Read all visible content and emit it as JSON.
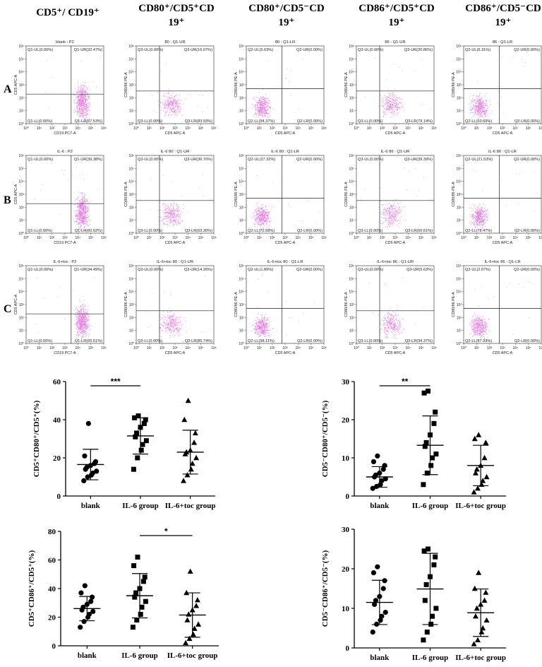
{
  "column_headers": [
    {
      "line1": "CD5⁺/ CD19⁺",
      "line2": ""
    },
    {
      "line1": "CD80⁺/CD5⁺CD",
      "line2": "19⁺"
    },
    {
      "line1": "CD80⁺/CD5⁻CD",
      "line2": "19⁺"
    },
    {
      "line1": "CD86⁺/CD5⁺CD",
      "line2": "19⁺"
    },
    {
      "line1": "CD86⁺/CD5⁻CD",
      "line2": "19⁺"
    }
  ],
  "row_labels": [
    "A",
    "B",
    "C"
  ],
  "flow_plots": [
    [
      {
        "title": "blank : P2",
        "xlabel": "CD19 PC7-A",
        "ylabel": "CD5 APC-A",
        "ul": "Q1-UL(0.00%)",
        "ur": "Q1-UR(32.47%)",
        "ll": "Q1-LL(0.00%)",
        "lr": "Q1-LR(67.53%)",
        "cloud": "lr",
        "vline": 0.58,
        "hline": 0.38
      },
      {
        "title": "80 : Q1-UR",
        "xlabel": "CD5 APC-A",
        "ylabel": "CD80/86 PE-A",
        "ul": "Q3-UL(0.00%)",
        "ur": "Q3-UR(16.07%)",
        "ll": "Q3-LL(0.00%)",
        "lr": "Q3-LR(83.93%)",
        "cloud": "center",
        "vline": 0.3,
        "hline": 0.42
      },
      {
        "title": "80 : Q1-LR",
        "xlabel": "CD5 APC-A",
        "ylabel": "CD80/86 PE-A",
        "ul": "Q2-UL(5.63%)",
        "ur": "Q2-UR(0.00%)",
        "ll": "Q2-LL(94.37%)",
        "lr": "Q2-LR(0.00%)",
        "cloud": "left",
        "vline": 0.46,
        "hline": 0.45
      },
      {
        "title": "86 : Q1-UR",
        "xlabel": "CD5 APC-A",
        "ylabel": "CD80/86 PE-A",
        "ul": "Q3-UL(0.00%)",
        "ur": "Q3-UR(20.86%)",
        "ll": "Q3-LL(0.00%)",
        "lr": "Q3-LR(79.14%)",
        "cloud": "center",
        "vline": 0.3,
        "hline": 0.42
      },
      {
        "title": "86 : Q1-LR",
        "xlabel": "CD5 APC-A",
        "ylabel": "CD80/86 PE-A",
        "ul": "Q2-UL(6.31%)",
        "ur": "Q2-UR(0.00%)",
        "ll": "Q2-LL(93.69%)",
        "lr": "Q2-LR(0.00%)",
        "cloud": "left",
        "vline": 0.46,
        "hline": 0.45
      }
    ],
    [
      {
        "title": "IL-6 : P2",
        "xlabel": "CD19 PC7-A",
        "ylabel": "CD5 APC-A",
        "ul": "Q1-UL(0.00%)",
        "ur": "Q1-UR(39.38%)",
        "ll": "Q1-LL(0.00%)",
        "lr": "Q1-LR(60.62%)",
        "cloud": "lr",
        "vline": 0.58,
        "hline": 0.38
      },
      {
        "title": "IL-6 80 : Q1-UR",
        "xlabel": "CD5 APC-A",
        "ylabel": "CD80/86 PE-A",
        "ul": "Q3-UL(0.00%)",
        "ur": "Q3-UR(36.70%)",
        "ll": "Q3-LL(0.00%)",
        "lr": "Q3-LR(63.30%)",
        "cloud": "center",
        "vline": 0.3,
        "hline": 0.42
      },
      {
        "title": "IL-6 80 : Q1-LR",
        "xlabel": "CD5 APC-A",
        "ylabel": "CD80/86 PE-A",
        "ul": "Q2-UL(27.32%)",
        "ur": "Q2-UR(0.00%)",
        "ll": "Q2-LL(72.68%)",
        "lr": "Q2-LR(0.00%)",
        "cloud": "left",
        "vline": 0.46,
        "hline": 0.45
      },
      {
        "title": "IL-6 86 : Q1-UR",
        "xlabel": "CD5 APC-A",
        "ylabel": "CD80/86 PE-A",
        "ul": "Q3-UL(0.00%)",
        "ur": "Q3-UR(39.39%)",
        "ll": "Q3-LL(0.00%)",
        "lr": "Q3-LR(60.61%)",
        "cloud": "center",
        "vline": 0.3,
        "hline": 0.42
      },
      {
        "title": "IL-6 86 : Q1-LR",
        "xlabel": "CD5 APC-A",
        "ylabel": "CD80/86 PE-A",
        "ul": "Q2-UL(21.53%)",
        "ur": "Q2-UR(0.00%)",
        "ll": "Q2-LL(78.47%)",
        "lr": "Q2-LR(0.00%)",
        "cloud": "left",
        "vline": 0.46,
        "hline": 0.45
      }
    ],
    [
      {
        "title": "IL-6+toc : P2",
        "xlabel": "CD19 PC7-A",
        "ylabel": "CD5 APC-A",
        "ul": "Q1-UL(0.00%)",
        "ur": "Q1-UR(34.49%)",
        "ll": "Q1-LL(0.00%)",
        "lr": "Q1-LR(65.51%)",
        "cloud": "lr",
        "vline": 0.58,
        "hline": 0.38
      },
      {
        "title": "IL-6+toc 80 : Q1-UR",
        "xlabel": "CD5 APC-A",
        "ylabel": "CD80/86 PE-A",
        "ul": "Q3-UL(0.00%)",
        "ur": "Q3-UR(14.26%)",
        "ll": "Q3-LL(0.00%)",
        "lr": "Q3-LR(85.74%)",
        "cloud": "center",
        "vline": 0.3,
        "hline": 0.42
      },
      {
        "title": "IL-6+toc 80 : Q1-LR",
        "xlabel": "CD5 APC-A",
        "ylabel": "CD80/86 PE-A",
        "ul": "Q2-UL(1.89%)",
        "ur": "Q2-UR(0.00%)",
        "ll": "Q2-LL(98.11%)",
        "lr": "Q2-LR(0.00%)",
        "cloud": "left",
        "vline": 0.46,
        "hline": 0.45
      },
      {
        "title": "IL-6+toc 86 : Q1-UR",
        "xlabel": "CD5 APC-A",
        "ylabel": "CD80/86 PE-A",
        "ul": "Q3-UL(0.00%)",
        "ur": "Q3-UR(5.63%)",
        "ll": "Q3-LL(0.00%)",
        "lr": "Q3-LR(94.37%)",
        "cloud": "center",
        "vline": 0.3,
        "hline": 0.42
      },
      {
        "title": "IL-6+toc 86 : Q1-LR",
        "xlabel": "CD5 APC-A",
        "ylabel": "CD80/86 PE-A",
        "ul": "Q2-UL(2.07%)",
        "ur": "Q2-UR(0.00%)",
        "ll": "Q2-LL(97.93%)",
        "lr": "Q2-LR(0.00%)",
        "cloud": "left",
        "vline": 0.46,
        "hline": 0.45
      }
    ]
  ],
  "flow_axis_ticks": [
    "10⁰",
    "10¹",
    "10²",
    "10³",
    "10⁴",
    "10⁵",
    "10⁶"
  ],
  "dot_color": "#e040d8",
  "chart_data": [
    {
      "type": "scatter",
      "ylabel": "CD5⁺CD80⁺/CD5⁺(%)",
      "categories": [
        "blank",
        "IL-6 group",
        "IL-6+toc group"
      ],
      "ylim": [
        0,
        60
      ],
      "yticks": [
        0,
        20,
        40,
        60
      ],
      "markers": [
        "circle",
        "square",
        "triangle"
      ],
      "points": [
        [
          8,
          10,
          11,
          12,
          13,
          14,
          15,
          16,
          17,
          18,
          21,
          38
        ],
        [
          14,
          20,
          24,
          27,
          29,
          31,
          33,
          36,
          38,
          40,
          41,
          42
        ],
        [
          8,
          11,
          14,
          17,
          20,
          22,
          23,
          24,
          28,
          33,
          40,
          50
        ]
      ],
      "mean": [
        16.5,
        31.5,
        23.0
      ],
      "sd": [
        8,
        9.5,
        11.5
      ],
      "significance": [
        {
          "from": 0,
          "to": 1,
          "label": "***"
        }
      ]
    },
    {
      "type": "scatter",
      "ylabel": "CD5⁻CD80⁺/CD5⁻(%)",
      "categories": [
        "blank",
        "IL-6 group",
        "IL-6+toc group"
      ],
      "ylim": [
        0,
        30
      ],
      "yticks": [
        0,
        10,
        20,
        30
      ],
      "markers": [
        "circle",
        "square",
        "triangle"
      ],
      "points": [
        [
          2,
          2.5,
          3,
          4,
          4.5,
          5,
          5.5,
          6,
          7,
          8,
          9,
          10.5
        ],
        [
          3,
          6,
          8,
          10,
          11,
          13,
          14,
          16,
          19,
          22,
          27,
          27.5
        ],
        [
          1,
          2,
          3,
          4,
          5,
          6,
          7,
          8,
          10,
          14,
          15,
          16
        ]
      ],
      "mean": [
        5.0,
        13.3,
        8.0
      ],
      "sd": [
        2.7,
        7.7,
        5.3
      ],
      "significance": [
        {
          "from": 0,
          "to": 1,
          "label": "**"
        }
      ]
    },
    {
      "type": "scatter",
      "ylabel": "CD5⁺CD86⁺/CD5⁺(%)",
      "categories": [
        "blank",
        "IL-6 group",
        "IL-6+toc group"
      ],
      "ylim": [
        0,
        80
      ],
      "yticks": [
        0,
        20,
        40,
        60,
        80
      ],
      "markers": [
        "circle",
        "square",
        "triangle"
      ],
      "points": [
        [
          13,
          17,
          20,
          22,
          24,
          25,
          27,
          29,
          31,
          34,
          37,
          42
        ],
        [
          13,
          18,
          22,
          27,
          31,
          34,
          37,
          40,
          45,
          48,
          56,
          62
        ],
        [
          2,
          5,
          8,
          12,
          15,
          18,
          22,
          25,
          28,
          32,
          37,
          52
        ]
      ],
      "mean": [
        26.0,
        35.0,
        21.5
      ],
      "sd": [
        8.5,
        15.5,
        15.5
      ],
      "significance": [
        {
          "from": 1,
          "to": 2,
          "label": "*"
        }
      ]
    },
    {
      "type": "scatter",
      "ylabel": "CD5⁻CD86⁺/CD5⁻(%)",
      "categories": [
        "blank",
        "IL-6 group",
        "IL-6+toc group"
      ],
      "ylim": [
        0,
        30
      ],
      "yticks": [
        0,
        10,
        20,
        30
      ],
      "markers": [
        "circle",
        "square",
        "triangle"
      ],
      "points": [
        [
          4,
          6,
          7,
          8,
          9,
          11,
          12,
          13,
          15,
          17,
          19,
          20.5
        ],
        [
          2,
          4,
          6,
          8,
          10,
          12,
          16,
          18,
          21,
          23,
          24.5,
          25
        ],
        [
          1,
          2,
          4,
          5,
          7,
          8,
          10,
          11,
          12,
          14,
          15,
          19
        ]
      ],
      "mean": [
        11.5,
        14.9,
        8.9
      ],
      "sd": [
        5.6,
        9.0,
        6.0
      ],
      "significance": []
    }
  ]
}
